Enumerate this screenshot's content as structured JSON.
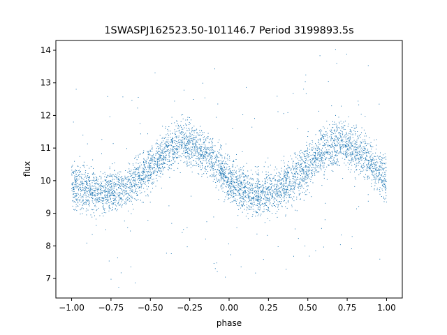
{
  "chart_data": {
    "type": "scatter",
    "title": "1SWASPJ162523.50-101146.7 Period 3199893.5s",
    "xlabel": "phase",
    "ylabel": "flux",
    "xlim": [
      -1.1,
      1.1
    ],
    "ylim": [
      6.4,
      14.3
    ],
    "xticks": [
      -1.0,
      -0.75,
      -0.5,
      -0.25,
      0.0,
      0.25,
      0.5,
      0.75,
      1.0
    ],
    "xtick_labels": [
      "−1.00",
      "−0.75",
      "−0.50",
      "−0.25",
      "0.00",
      "0.25",
      "0.50",
      "0.75",
      "1.00"
    ],
    "yticks": [
      7,
      8,
      9,
      10,
      11,
      12,
      13,
      14
    ],
    "ytick_labels": [
      "7",
      "8",
      "9",
      "10",
      "11",
      "12",
      "13",
      "14"
    ],
    "grid": false,
    "legend": "none",
    "marker_color": "#1f77b4",
    "description_of_distribution": "dense folded light curve, two cycles",
    "trend": {
      "phase": [
        -1.0,
        -0.9,
        -0.8,
        -0.7,
        -0.6,
        -0.5,
        -0.4,
        -0.3,
        -0.2,
        -0.1,
        0.0,
        0.1,
        0.2,
        0.3,
        0.4,
        0.5,
        0.6,
        0.7,
        0.8,
        0.9,
        1.0
      ],
      "flux": [
        9.8,
        9.7,
        9.6,
        9.7,
        10.0,
        10.4,
        10.9,
        11.2,
        11.0,
        10.6,
        10.0,
        9.7,
        9.6,
        9.7,
        10.0,
        10.4,
        10.9,
        11.2,
        11.0,
        10.6,
        10.0
      ]
    },
    "spread": 0.55
  }
}
